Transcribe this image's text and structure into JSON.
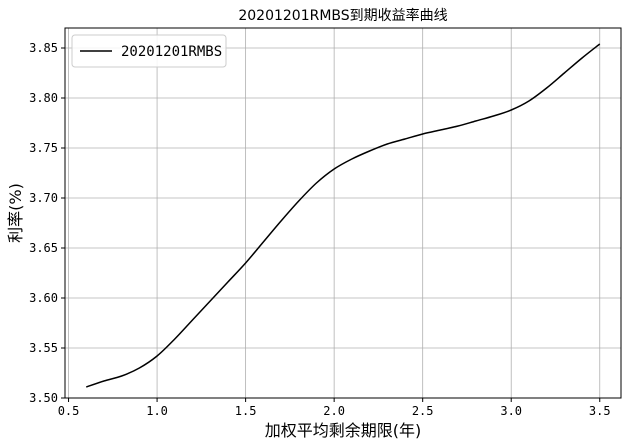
{
  "chart_data": {
    "type": "line",
    "title": "20201201RMBS到期收益率曲线",
    "xlabel": "加权平均剩余期限(年)",
    "ylabel": "利率(%)",
    "xlim": [
      0.48,
      3.62
    ],
    "ylim": [
      3.5,
      3.87
    ],
    "xticks": [
      0.5,
      1.0,
      1.5,
      2.0,
      2.5,
      3.0,
      3.5
    ],
    "xtick_labels": [
      "0.5",
      "1.0",
      "1.5",
      "2.0",
      "2.5",
      "3.0",
      "3.5"
    ],
    "yticks": [
      3.5,
      3.55,
      3.6,
      3.65,
      3.7,
      3.75,
      3.8,
      3.85
    ],
    "ytick_labels": [
      "3.50",
      "3.55",
      "3.60",
      "3.65",
      "3.70",
      "3.75",
      "3.80",
      "3.85"
    ],
    "grid": true,
    "legend_position": "top-left",
    "series": [
      {
        "name": "20201201RMBS",
        "color": "#000000",
        "x": [
          0.6,
          0.7,
          0.8,
          0.9,
          1.0,
          1.1,
          1.2,
          1.3,
          1.4,
          1.5,
          1.6,
          1.7,
          1.8,
          1.9,
          2.0,
          2.1,
          2.2,
          2.3,
          2.4,
          2.5,
          2.6,
          2.7,
          2.8,
          2.9,
          3.0,
          3.1,
          3.2,
          3.3,
          3.4,
          3.5
        ],
        "y": [
          3.511,
          3.517,
          3.522,
          3.53,
          3.542,
          3.559,
          3.578,
          3.597,
          3.616,
          3.635,
          3.656,
          3.677,
          3.697,
          3.715,
          3.729,
          3.739,
          3.747,
          3.754,
          3.759,
          3.764,
          3.768,
          3.772,
          3.777,
          3.782,
          3.788,
          3.797,
          3.81,
          3.825,
          3.84,
          3.854
        ]
      }
    ]
  }
}
